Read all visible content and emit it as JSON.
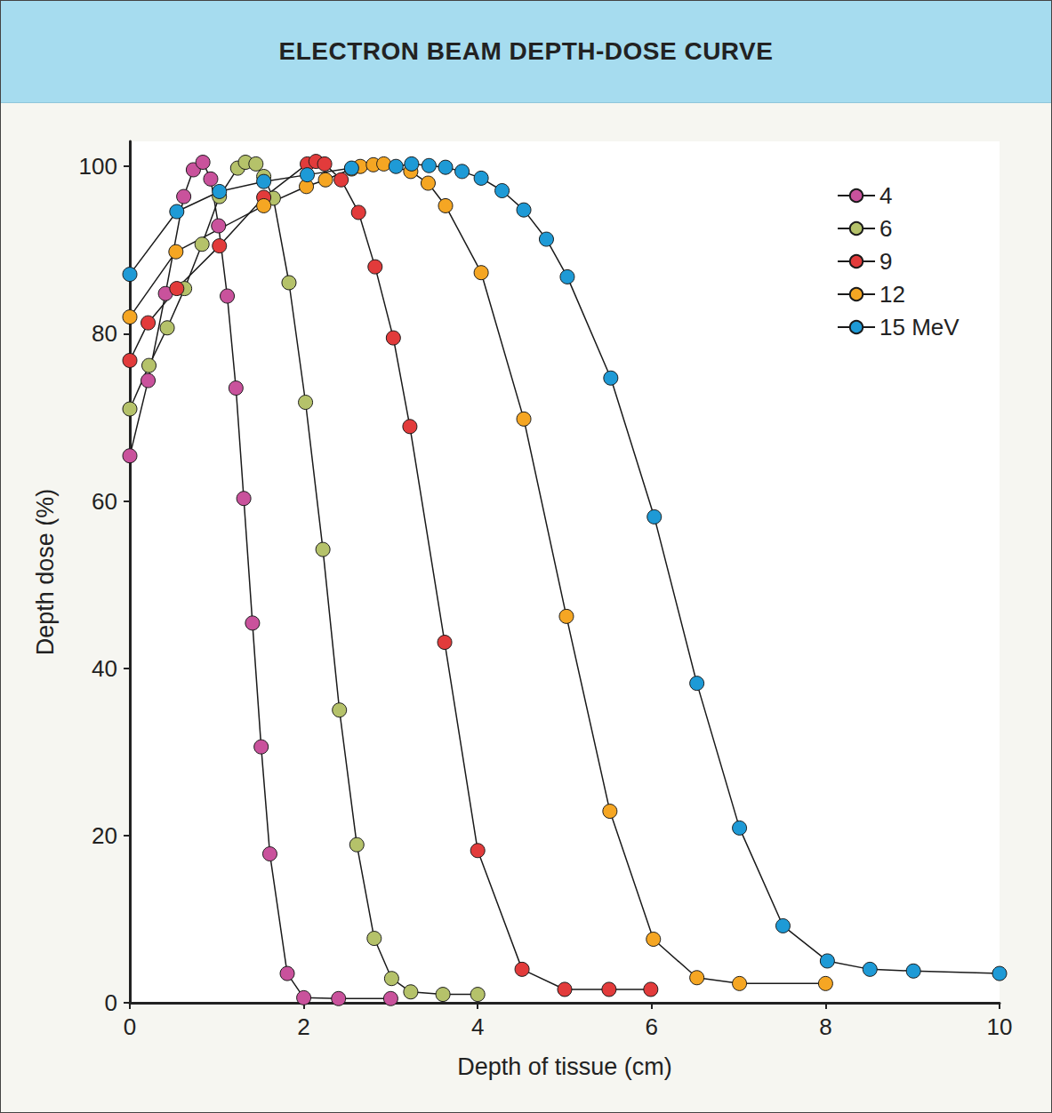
{
  "chart_data": {
    "type": "line",
    "title": "ELECTRON BEAM DEPTH-DOSE CURVE",
    "x_label": "Depth of tissue (cm)",
    "y_label": "Depth dose (%)",
    "xlim": [
      0,
      10
    ],
    "xticks": [
      0,
      2,
      4,
      6,
      8,
      10
    ],
    "ylim": [
      0,
      103
    ],
    "yticks": [
      0,
      20,
      40,
      60,
      80,
      100
    ],
    "grid": false,
    "legend": "upper right",
    "marker": "circle",
    "line_style": "solid",
    "series": [
      {
        "name": "4",
        "color": "#c9529c",
        "x": [
          0,
          0.21,
          0.41,
          0.62,
          0.73,
          0.84,
          0.93,
          1.02,
          1.12,
          1.22,
          1.31,
          1.41,
          1.51,
          1.61,
          1.81,
          2.0,
          2.4,
          3.0
        ],
        "values": [
          65.4,
          74.4,
          84.8,
          96.4,
          99.6,
          100.5,
          98.5,
          92.9,
          84.5,
          73.5,
          60.3,
          45.4,
          30.6,
          17.8,
          3.5,
          0.6,
          0.5,
          0.5
        ]
      },
      {
        "name": "6",
        "color": "#b5c26a",
        "x": [
          0,
          0.22,
          0.43,
          0.63,
          0.83,
          1.03,
          1.24,
          1.33,
          1.45,
          1.54,
          1.65,
          1.83,
          2.02,
          2.22,
          2.41,
          2.61,
          2.81,
          3.01,
          3.23,
          3.6,
          4.0
        ],
        "values": [
          71.0,
          76.2,
          80.7,
          85.4,
          90.7,
          96.4,
          99.8,
          100.5,
          100.3,
          98.8,
          96.2,
          86.1,
          71.8,
          54.2,
          35.0,
          18.9,
          7.7,
          2.9,
          1.3,
          1.0,
          1.0
        ]
      },
      {
        "name": "9",
        "color": "#e23b3b",
        "x": [
          0,
          0.21,
          0.54,
          1.03,
          1.54,
          2.04,
          2.14,
          2.24,
          2.43,
          2.63,
          2.82,
          3.03,
          3.22,
          3.62,
          4.0,
          4.51,
          5.0,
          5.51,
          5.99
        ],
        "values": [
          76.8,
          81.3,
          85.4,
          90.5,
          96.3,
          100.3,
          100.6,
          100.3,
          98.4,
          94.5,
          88.0,
          79.5,
          68.9,
          43.1,
          18.2,
          4.0,
          1.6,
          1.6,
          1.6
        ]
      },
      {
        "name": "12",
        "color": "#f5a623",
        "x": [
          0,
          0.53,
          1.54,
          2.03,
          2.25,
          2.55,
          2.65,
          2.8,
          2.92,
          3.23,
          3.43,
          3.63,
          4.04,
          4.53,
          5.02,
          5.52,
          6.02,
          6.52,
          7.01,
          8.0
        ],
        "values": [
          82.0,
          89.8,
          95.3,
          97.6,
          98.4,
          99.7,
          100.0,
          100.2,
          100.3,
          99.4,
          98.0,
          95.3,
          87.3,
          69.8,
          46.2,
          22.9,
          7.6,
          3.0,
          2.3,
          2.3
        ]
      },
      {
        "name": "15 MeV",
        "color": "#1e9ad6",
        "x": [
          0,
          0.54,
          1.03,
          1.54,
          2.04,
          2.55,
          3.06,
          3.24,
          3.44,
          3.63,
          3.82,
          4.04,
          4.28,
          4.53,
          4.79,
          5.03,
          5.53,
          6.03,
          6.52,
          7.01,
          7.51,
          8.02,
          8.51,
          9.01,
          10.0
        ],
        "values": [
          87.1,
          94.6,
          97.0,
          98.2,
          99.0,
          99.8,
          100.0,
          100.3,
          100.1,
          99.9,
          99.4,
          98.6,
          97.1,
          94.8,
          91.3,
          86.8,
          74.7,
          58.1,
          38.2,
          20.9,
          9.2,
          5.0,
          4.0,
          3.8,
          3.5
        ]
      }
    ]
  }
}
